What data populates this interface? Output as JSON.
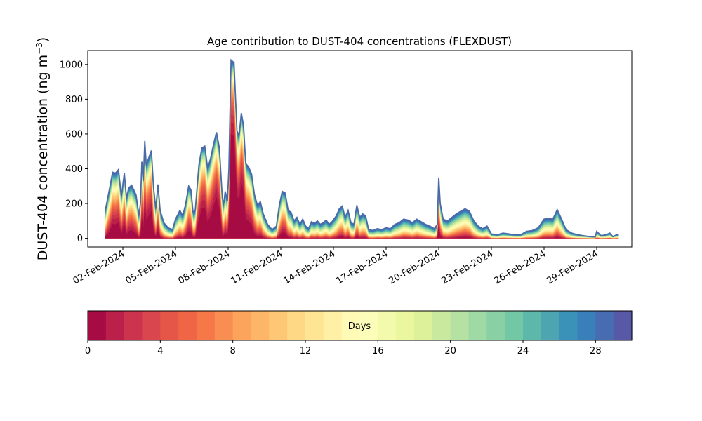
{
  "chart_data": {
    "type": "area",
    "stacked": true,
    "title": "Age contribution to DUST-404 concentrations (FLEXDUST)",
    "ylabel": "DUST-404 concentration (ng m⁻³)",
    "ylabel_main": "DUST-404 concentration (ng m",
    "ylabel_sup": "−3",
    "ylabel_close": ")",
    "xlabel": "",
    "x_start": "2024-02-01",
    "x_end": "2024-02-29",
    "xlim": [
      "2024-01-31",
      "2024-03-02"
    ],
    "ylim": [
      -50,
      1080
    ],
    "yticks": [
      0,
      200,
      400,
      600,
      800,
      1000
    ],
    "xticks": [
      "02-Feb-2024",
      "05-Feb-2024",
      "08-Feb-2024",
      "11-Feb-2024",
      "14-Feb-2024",
      "17-Feb-2024",
      "20-Feb-2024",
      "23-Feb-2024",
      "26-Feb-2024",
      "29-Feb-2024"
    ],
    "xtick_dates": [
      "2024-02-02",
      "2024-02-05",
      "2024-02-08",
      "2024-02-11",
      "2024-02-14",
      "2024-02-17",
      "2024-02-20",
      "2024-02-23",
      "2024-02-26",
      "2024-02-29"
    ],
    "grid": false,
    "total_points": [
      [
        "2024-02-01T00:00",
        160
      ],
      [
        "2024-02-01T06:00",
        290
      ],
      [
        "2024-02-01T10:00",
        380
      ],
      [
        "2024-02-01T14:00",
        375
      ],
      [
        "2024-02-01T18:00",
        395
      ],
      [
        "2024-02-01T22:00",
        240
      ],
      [
        "2024-02-02T02:00",
        375
      ],
      [
        "2024-02-02T05:00",
        230
      ],
      [
        "2024-02-02T08:00",
        290
      ],
      [
        "2024-02-02T12:00",
        305
      ],
      [
        "2024-02-02T18:00",
        250
      ],
      [
        "2024-02-02T22:00",
        130
      ],
      [
        "2024-02-03T00:00",
        200
      ],
      [
        "2024-02-03T02:00",
        440
      ],
      [
        "2024-02-03T04:00",
        330
      ],
      [
        "2024-02-03T06:00",
        560
      ],
      [
        "2024-02-03T08:00",
        420
      ],
      [
        "2024-02-03T12:00",
        470
      ],
      [
        "2024-02-03T15:00",
        505
      ],
      [
        "2024-02-03T18:00",
        290
      ],
      [
        "2024-02-03T21:00",
        170
      ],
      [
        "2024-02-04T00:00",
        310
      ],
      [
        "2024-02-04T03:00",
        160
      ],
      [
        "2024-02-04T08:00",
        90
      ],
      [
        "2024-02-04T14:00",
        60
      ],
      [
        "2024-02-04T20:00",
        50
      ],
      [
        "2024-02-05T00:00",
        110
      ],
      [
        "2024-02-05T06:00",
        160
      ],
      [
        "2024-02-05T10:00",
        130
      ],
      [
        "2024-02-05T14:00",
        200
      ],
      [
        "2024-02-05T18:00",
        300
      ],
      [
        "2024-02-05T21:00",
        280
      ],
      [
        "2024-02-06T00:00",
        150
      ],
      [
        "2024-02-06T03:00",
        160
      ],
      [
        "2024-02-06T08:00",
        420
      ],
      [
        "2024-02-06T12:00",
        520
      ],
      [
        "2024-02-06T16:00",
        530
      ],
      [
        "2024-02-06T20:00",
        400
      ],
      [
        "2024-02-07T00:00",
        460
      ],
      [
        "2024-02-07T04:00",
        540
      ],
      [
        "2024-02-07T08:00",
        610
      ],
      [
        "2024-02-07T12:00",
        520
      ],
      [
        "2024-02-07T16:00",
        230
      ],
      [
        "2024-02-07T18:00",
        200
      ],
      [
        "2024-02-07T20:00",
        270
      ],
      [
        "2024-02-07T23:00",
        215
      ],
      [
        "2024-02-08T01:00",
        400
      ],
      [
        "2024-02-08T04:00",
        1025
      ],
      [
        "2024-02-08T08:00",
        1010
      ],
      [
        "2024-02-08T12:00",
        620
      ],
      [
        "2024-02-08T15:00",
        590
      ],
      [
        "2024-02-08T18:00",
        720
      ],
      [
        "2024-02-08T21:00",
        650
      ],
      [
        "2024-02-09T00:00",
        430
      ],
      [
        "2024-02-09T04:00",
        410
      ],
      [
        "2024-02-09T08:00",
        370
      ],
      [
        "2024-02-09T12:00",
        250
      ],
      [
        "2024-02-09T16:00",
        190
      ],
      [
        "2024-02-09T20:00",
        210
      ],
      [
        "2024-02-10T00:00",
        140
      ],
      [
        "2024-02-10T06:00",
        80
      ],
      [
        "2024-02-10T12:00",
        50
      ],
      [
        "2024-02-10T18:00",
        70
      ],
      [
        "2024-02-10T22:00",
        190
      ],
      [
        "2024-02-11T02:00",
        270
      ],
      [
        "2024-02-11T06:00",
        260
      ],
      [
        "2024-02-11T10:00",
        160
      ],
      [
        "2024-02-11T14:00",
        150
      ],
      [
        "2024-02-11T18:00",
        100
      ],
      [
        "2024-02-11T22:00",
        120
      ],
      [
        "2024-02-12T02:00",
        80
      ],
      [
        "2024-02-12T06:00",
        110
      ],
      [
        "2024-02-12T10:00",
        70
      ],
      [
        "2024-02-12T14:00",
        55
      ],
      [
        "2024-02-12T18:00",
        95
      ],
      [
        "2024-02-12T22:00",
        85
      ],
      [
        "2024-02-13T02:00",
        100
      ],
      [
        "2024-02-13T06:00",
        80
      ],
      [
        "2024-02-13T10:00",
        90
      ],
      [
        "2024-02-13T14:00",
        105
      ],
      [
        "2024-02-13T18:00",
        80
      ],
      [
        "2024-02-13T22:00",
        95
      ],
      [
        "2024-02-14T04:00",
        130
      ],
      [
        "2024-02-14T08:00",
        170
      ],
      [
        "2024-02-14T12:00",
        185
      ],
      [
        "2024-02-14T16:00",
        120
      ],
      [
        "2024-02-14T20:00",
        160
      ],
      [
        "2024-02-15T00:00",
        90
      ],
      [
        "2024-02-15T04:00",
        80
      ],
      [
        "2024-02-15T08:00",
        190
      ],
      [
        "2024-02-15T12:00",
        120
      ],
      [
        "2024-02-15T16:00",
        140
      ],
      [
        "2024-02-15T20:00",
        130
      ],
      [
        "2024-02-16T00:00",
        50
      ],
      [
        "2024-02-16T06:00",
        45
      ],
      [
        "2024-02-16T12:00",
        55
      ],
      [
        "2024-02-16T18:00",
        50
      ],
      [
        "2024-02-17T00:00",
        60
      ],
      [
        "2024-02-17T06:00",
        55
      ],
      [
        "2024-02-17T12:00",
        80
      ],
      [
        "2024-02-17T18:00",
        90
      ],
      [
        "2024-02-18T00:00",
        110
      ],
      [
        "2024-02-18T06:00",
        105
      ],
      [
        "2024-02-18T12:00",
        90
      ],
      [
        "2024-02-18T18:00",
        110
      ],
      [
        "2024-02-19T00:00",
        95
      ],
      [
        "2024-02-19T06:00",
        80
      ],
      [
        "2024-02-19T12:00",
        70
      ],
      [
        "2024-02-19T18:00",
        55
      ],
      [
        "2024-02-19T22:00",
        80
      ],
      [
        "2024-02-20T00:00",
        350
      ],
      [
        "2024-02-20T02:00",
        200
      ],
      [
        "2024-02-20T06:00",
        110
      ],
      [
        "2024-02-20T12:00",
        100
      ],
      [
        "2024-02-20T18:00",
        120
      ],
      [
        "2024-02-21T00:00",
        140
      ],
      [
        "2024-02-21T06:00",
        155
      ],
      [
        "2024-02-21T12:00",
        170
      ],
      [
        "2024-02-21T18:00",
        155
      ],
      [
        "2024-02-22T00:00",
        100
      ],
      [
        "2024-02-22T06:00",
        70
      ],
      [
        "2024-02-22T12:00",
        55
      ],
      [
        "2024-02-22T18:00",
        70
      ],
      [
        "2024-02-23T00:00",
        25
      ],
      [
        "2024-02-23T08:00",
        20
      ],
      [
        "2024-02-23T16:00",
        30
      ],
      [
        "2024-02-24T00:00",
        25
      ],
      [
        "2024-02-24T08:00",
        20
      ],
      [
        "2024-02-24T16:00",
        20
      ],
      [
        "2024-02-25T00:00",
        40
      ],
      [
        "2024-02-25T08:00",
        45
      ],
      [
        "2024-02-25T16:00",
        60
      ],
      [
        "2024-02-26T00:00",
        110
      ],
      [
        "2024-02-26T06:00",
        115
      ],
      [
        "2024-02-26T12:00",
        110
      ],
      [
        "2024-02-26T18:00",
        165
      ],
      [
        "2024-02-27T00:00",
        110
      ],
      [
        "2024-02-27T06:00",
        50
      ],
      [
        "2024-02-27T14:00",
        30
      ],
      [
        "2024-02-27T22:00",
        20
      ],
      [
        "2024-02-28T06:00",
        15
      ],
      [
        "2024-02-28T14:00",
        10
      ],
      [
        "2024-02-28T22:00",
        8
      ],
      [
        "2024-02-29T00:00",
        40
      ],
      [
        "2024-02-29T06:00",
        15
      ],
      [
        "2024-02-29T12:00",
        20
      ],
      [
        "2024-02-29T18:00",
        30
      ],
      [
        "2024-02-29T22:00",
        10
      ],
      [
        "2024-03-01T06:00",
        25
      ]
    ],
    "colorbar": {
      "label": "Days",
      "range": [
        0,
        30
      ],
      "ticks": [
        0,
        4,
        8,
        12,
        16,
        20,
        24,
        28
      ],
      "n_bins": 30,
      "colormap": "Spectral",
      "colors": [
        "#9e0142",
        "#d53e4f",
        "#f46d43",
        "#fdae61",
        "#fee08b",
        "#ffffbf",
        "#e6f598",
        "#abdda4",
        "#66c2a5",
        "#3288bd",
        "#5e4fa2"
      ]
    }
  }
}
